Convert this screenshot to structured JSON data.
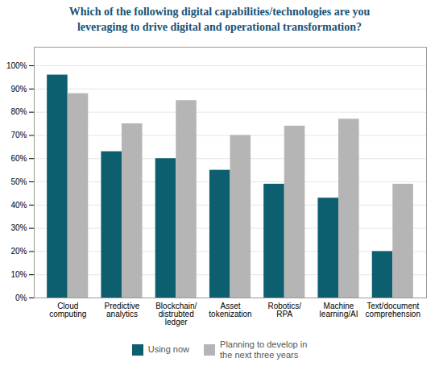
{
  "chart_data": {
    "type": "bar",
    "title": "Which of the following digital capabilities/technologies are you\nleveraging to drive digital and operational transformation?",
    "title_color": "#1a5276",
    "categories": [
      "Cloud\ncomputing",
      "Predictive\nanalytics",
      "Blockchain/\ndistrubted\nledger",
      "Asset\ntokenization",
      "Robotics/\nRPA",
      "Machine\nlearning/AI",
      "Text/document\ncomprehension"
    ],
    "series": [
      {
        "name": "Using now",
        "color": "#0d5e6e",
        "values": [
          96,
          63,
          60,
          55,
          49,
          43,
          20
        ]
      },
      {
        "name": "Planning to develop in\nthe next three years",
        "color": "#b5b5b5",
        "values": [
          88,
          75,
          85,
          70,
          74,
          77,
          49
        ]
      }
    ],
    "ylim": [
      0,
      108
    ],
    "yticks": [
      {
        "value": 0,
        "label": "0%"
      },
      {
        "value": 10,
        "label": "10%"
      },
      {
        "value": 20,
        "label": "20%"
      },
      {
        "value": 30,
        "label": "30%"
      },
      {
        "value": 40,
        "label": "40%"
      },
      {
        "value": 50,
        "label": "50%"
      },
      {
        "value": 60,
        "label": "60%"
      },
      {
        "value": 70,
        "label": "70%"
      },
      {
        "value": 80,
        "label": "80%"
      },
      {
        "value": 90,
        "label": "90%"
      },
      {
        "value": 100,
        "label": "100%"
      }
    ],
    "grid": true,
    "legend": "bottom"
  }
}
